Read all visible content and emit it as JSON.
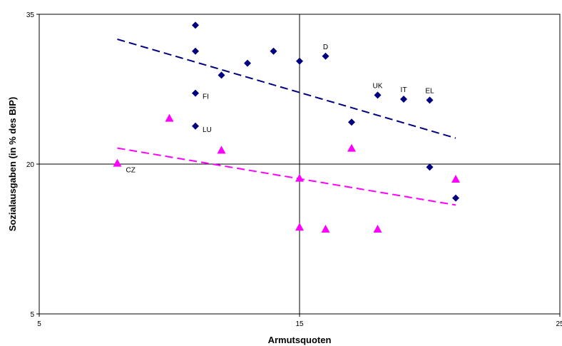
{
  "chart_data": {
    "type": "scatter",
    "title": "",
    "xlabel": "Armutsquoten",
    "ylabel": "Sozialausgaben (in % des BIP)",
    "xlim": [
      5,
      25
    ],
    "ylim": [
      5,
      35
    ],
    "xticks": [
      "5",
      "15",
      "25"
    ],
    "yticks": [
      "5",
      "20",
      "35"
    ],
    "crosshair": {
      "x": 15,
      "y": 20
    },
    "series": [
      {
        "color": "#000080",
        "marker": "diamond",
        "trendline": {
          "x1": 8,
          "y1": 32.5,
          "x2": 21,
          "y2": 22.6,
          "color": "#000080"
        },
        "points": [
          {
            "x": 11,
            "y": 33.9,
            "label": ""
          },
          {
            "x": 11,
            "y": 31.3,
            "label": ""
          },
          {
            "x": 12,
            "y": 28.9,
            "label": ""
          },
          {
            "x": 13,
            "y": 30.1,
            "label": ""
          },
          {
            "x": 14,
            "y": 31.3,
            "label": ""
          },
          {
            "x": 15,
            "y": 30.3,
            "label": ""
          },
          {
            "x": 16,
            "y": 30.8,
            "label": "D"
          },
          {
            "x": 11,
            "y": 27.1,
            "label": "FI"
          },
          {
            "x": 18,
            "y": 26.9,
            "label": "UK"
          },
          {
            "x": 19,
            "y": 26.5,
            "label": "IT"
          },
          {
            "x": 20,
            "y": 26.4,
            "label": "EL"
          },
          {
            "x": 17,
            "y": 24.2,
            "label": ""
          },
          {
            "x": 11,
            "y": 23.8,
            "label": "LU"
          },
          {
            "x": 20,
            "y": 19.7,
            "label": ""
          },
          {
            "x": 21,
            "y": 16.6,
            "label": ""
          }
        ]
      },
      {
        "color": "#FF00FF",
        "marker": "triangle",
        "trendline": {
          "x1": 8,
          "y1": 21.6,
          "x2": 21,
          "y2": 15.9,
          "color": "#FF00FF"
        },
        "points": [
          {
            "x": 8,
            "y": 20.1,
            "label": "CZ"
          },
          {
            "x": 10,
            "y": 24.6,
            "label": ""
          },
          {
            "x": 12,
            "y": 21.4,
            "label": ""
          },
          {
            "x": 15,
            "y": 18.6,
            "label": ""
          },
          {
            "x": 17,
            "y": 21.6,
            "label": ""
          },
          {
            "x": 21,
            "y": 18.5,
            "label": ""
          },
          {
            "x": 15,
            "y": 13.7,
            "label": ""
          },
          {
            "x": 16,
            "y": 13.5,
            "label": ""
          },
          {
            "x": 18,
            "y": 13.5,
            "label": ""
          }
        ]
      }
    ]
  }
}
